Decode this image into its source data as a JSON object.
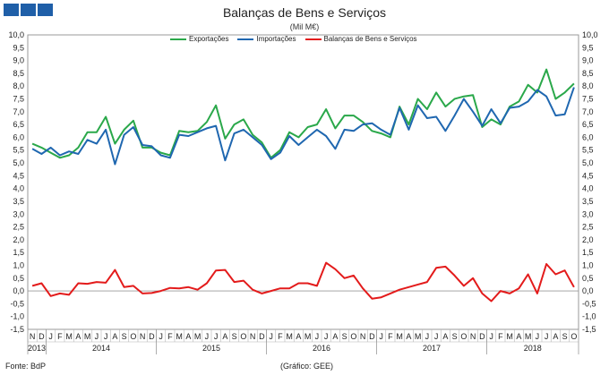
{
  "header": {
    "title": "Balanças de Bens e Serviços",
    "subtitle": "(Mil M€)"
  },
  "footer": {
    "source": "Fonte: BdP",
    "graph_credit": "(Gráfico: GEE)"
  },
  "chart_data": {
    "type": "line",
    "title": "Balanças de Bens e Serviços",
    "subtitle": "(Mil M€)",
    "ylabel": "",
    "xlabel": "",
    "ylim": [
      -1.5,
      10.0
    ],
    "yticks": [
      "10,0",
      "9,5",
      "9,0",
      "8,5",
      "8,0",
      "7,5",
      "7,0",
      "6,5",
      "6,0",
      "5,5",
      "5,0",
      "4,5",
      "4,0",
      "3,5",
      "3,0",
      "2,5",
      "2,0",
      "1,5",
      "1,0",
      "0,5",
      "0,0",
      "-0,5",
      "-1,0",
      "-1,5"
    ],
    "grid": false,
    "legend_position": "top",
    "x": [
      "N",
      "D",
      "J",
      "F",
      "M",
      "A",
      "M",
      "J",
      "J",
      "A",
      "S",
      "O",
      "N",
      "D",
      "J",
      "F",
      "M",
      "A",
      "M",
      "J",
      "J",
      "A",
      "S",
      "O",
      "N",
      "D",
      "J",
      "F",
      "M",
      "A",
      "M",
      "J",
      "J",
      "A",
      "S",
      "O",
      "N",
      "D",
      "J",
      "F",
      "M",
      "A",
      "M",
      "J",
      "J",
      "A",
      "S",
      "O",
      "N",
      "D",
      "J",
      "F",
      "M",
      "A",
      "M",
      "J",
      "J",
      "A",
      "S",
      "O"
    ],
    "year_labels": [
      {
        "label": "2013",
        "start": 0,
        "end": 1
      },
      {
        "label": "2014",
        "start": 2,
        "end": 13
      },
      {
        "label": "2015",
        "start": 14,
        "end": 25
      },
      {
        "label": "2016",
        "start": 26,
        "end": 37
      },
      {
        "label": "2017",
        "start": 38,
        "end": 49
      },
      {
        "label": "2018",
        "start": 50,
        "end": 59
      }
    ],
    "series": [
      {
        "name": "Exportações",
        "color": "#2aa84a",
        "values": [
          5.75,
          5.6,
          5.4,
          5.2,
          5.3,
          5.6,
          6.2,
          6.2,
          6.8,
          5.75,
          6.3,
          6.65,
          5.6,
          5.6,
          5.4,
          5.3,
          6.25,
          6.2,
          6.25,
          6.6,
          7.25,
          5.95,
          6.5,
          6.7,
          6.1,
          5.8,
          5.2,
          5.5,
          6.2,
          6.0,
          6.4,
          6.5,
          7.1,
          6.35,
          6.85,
          6.85,
          6.6,
          6.25,
          6.15,
          6.0,
          7.2,
          6.5,
          7.5,
          7.1,
          7.75,
          7.2,
          7.5,
          7.6,
          7.65,
          6.4,
          6.7,
          6.5,
          7.2,
          7.4,
          8.05,
          7.75,
          8.65,
          7.5,
          7.75,
          8.1
        ]
      },
      {
        "name": "Importações",
        "color": "#1f67b0",
        "values": [
          5.55,
          5.35,
          5.6,
          5.3,
          5.45,
          5.35,
          5.9,
          5.75,
          6.3,
          4.95,
          6.1,
          6.4,
          5.7,
          5.65,
          5.3,
          5.2,
          6.1,
          6.05,
          6.2,
          6.35,
          6.45,
          5.1,
          6.15,
          6.3,
          6.0,
          5.7,
          5.15,
          5.4,
          6.05,
          5.7,
          6.0,
          6.3,
          6.05,
          5.55,
          6.3,
          6.25,
          6.5,
          6.55,
          6.3,
          6.1,
          7.15,
          6.3,
          7.25,
          6.75,
          6.8,
          6.25,
          6.85,
          7.5,
          7.0,
          6.45,
          7.1,
          6.55,
          7.15,
          7.2,
          7.4,
          7.85,
          7.6,
          6.85,
          6.9,
          7.95
        ]
      },
      {
        "name": "Balanças de Bens e Serviços",
        "color": "#e31b1b",
        "values": [
          0.2,
          0.3,
          -0.2,
          -0.1,
          -0.15,
          0.3,
          0.28,
          0.35,
          0.32,
          0.82,
          0.15,
          0.2,
          -0.1,
          -0.08,
          0.0,
          0.12,
          0.1,
          0.15,
          0.05,
          0.3,
          0.8,
          0.82,
          0.35,
          0.4,
          0.05,
          -0.1,
          0.0,
          0.1,
          0.1,
          0.3,
          0.3,
          0.2,
          1.1,
          0.85,
          0.5,
          0.6,
          0.1,
          -0.3,
          -0.25,
          -0.1,
          0.05,
          0.15,
          0.25,
          0.35,
          0.9,
          0.95,
          0.6,
          0.2,
          0.5,
          -0.1,
          -0.4,
          0.0,
          -0.1,
          0.1,
          0.65,
          -0.1,
          1.05,
          0.65,
          0.8,
          0.15
        ]
      }
    ]
  }
}
